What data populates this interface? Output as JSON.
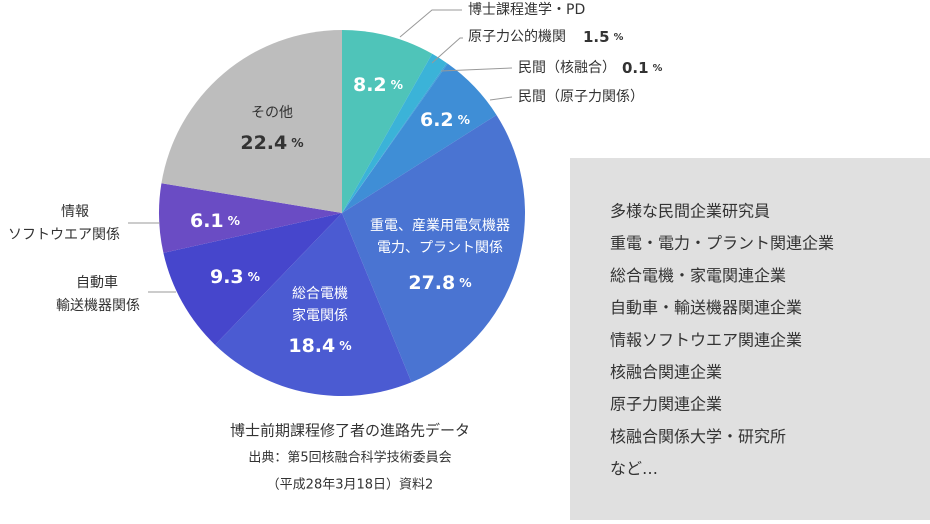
{
  "chart_data": {
    "type": "pie",
    "categories": [
      [
        "博士課程進学・PD"
      ],
      [
        "原子力公的機関"
      ],
      [
        "民間（核融合）"
      ],
      [
        "民間（原子力関係）"
      ],
      [
        "重電、産業用電気機器",
        "電力、プラント関係"
      ],
      [
        "総合電機",
        "家電関係"
      ],
      [
        "自動車",
        "輸送機器関係"
      ],
      [
        "情報",
        "ソフトウエア関係"
      ],
      [
        "その他"
      ]
    ],
    "values": [
      8.2,
      1.5,
      0.1,
      6.2,
      27.8,
      18.4,
      9.3,
      6.1,
      22.4
    ],
    "unit": "%",
    "colors": [
      "#4fc4b9",
      "#3bb3d8",
      "#3a9fd8",
      "#3f8ed6",
      "#4a74d2",
      "#4b5bd2",
      "#4646cc",
      "#6a4cc4",
      "#bdbdbd"
    ],
    "caption": [
      "博士前期課程修了者の進路先データ",
      "出典：第5回核融合科学技術委員会",
      "（平成28年3月18日）資料2"
    ],
    "notes": [
      "多様な民間企業研究員",
      "重電・電力・プラント関連企業",
      "総合電機・家電関連企業",
      "自動車・輸送機器関連企業",
      "情報ソフトウエア関連企業",
      "核融合関連企業",
      "原子力関連企業",
      "核融合関係大学・研究所",
      "など…"
    ]
  }
}
